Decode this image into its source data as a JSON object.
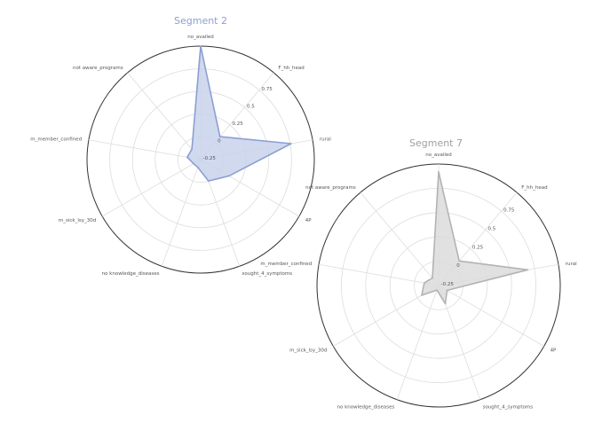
{
  "chart_data": [
    {
      "type": "radar",
      "title": "Segment 2",
      "axes": [
        "no_availed",
        "F_hh_head",
        "rural",
        "4P",
        "sought_4_symptoms",
        "no_knowledge_diseases",
        "m_sick_lsy_30d",
        "m_member_confined",
        "not_aware_programs"
      ],
      "axis_label_texts": [
        "no_availed",
        "F_hh_head",
        "rural",
        "4P",
        "sought_4_symptoms",
        "no knowledge_diseases",
        "m_sick_lsy_30d",
        "m_member_confined",
        "not aware_programs"
      ],
      "rlim": [
        -0.25,
        1
      ],
      "radial_ticks": [
        -0.25,
        0,
        0.25,
        0.5,
        0.75
      ],
      "radial_tick_labels": [
        "-0.25",
        "0",
        "0.25",
        "0.5",
        "0.75"
      ],
      "series": [
        {
          "values": [
            1.0,
            0.08,
            0.76,
            0.11,
            0.0,
            -0.16,
            -0.16,
            -0.1,
            -0.1
          ]
        }
      ],
      "color": "#8c9fd3",
      "fill_color": "#c9d2ec"
    },
    {
      "type": "radar",
      "title": "Segment 7",
      "axes": [
        "no_availed",
        "F_hh_head",
        "rural",
        "4P",
        "sought_4_symptoms",
        "no_knowledge_diseases",
        "m_sick_lsy_30d",
        "m_member_confined",
        "not_aware_programs"
      ],
      "axis_label_texts": [
        "no_availed",
        "F_hh_head",
        "rural",
        "4P",
        "sought_4_symptoms",
        "no knowledge_diseases",
        "m_sick_lsy_30d",
        "m_member_confined",
        "not aware_programs"
      ],
      "rlim": [
        -0.25,
        1
      ],
      "radial_ticks": [
        -0.25,
        0,
        0.25,
        0.5,
        0.75
      ],
      "radial_tick_labels": [
        "-0.25",
        "0",
        "0.25",
        "0.5",
        "0.75"
      ],
      "series": [
        {
          "values": [
            0.92,
            0.08,
            0.68,
            -0.15,
            -0.05,
            -0.2,
            -0.05,
            -0.1,
            -0.15
          ]
        }
      ],
      "color": "#b3b3b3",
      "fill_color": "#dcdcdc"
    }
  ]
}
